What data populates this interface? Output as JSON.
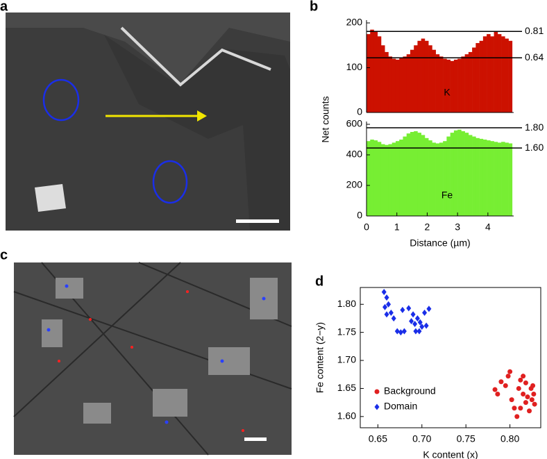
{
  "panel_labels": [
    "a",
    "b",
    "c",
    "d"
  ],
  "chart_data": [
    {
      "type": "histogram",
      "label": "K",
      "ylabel": "Net counts",
      "color": "#cc1100",
      "bins": [
        0,
        0.12,
        0.24,
        0.36,
        0.48,
        0.6,
        0.72,
        0.84,
        0.96,
        1.08,
        1.2,
        1.32,
        1.44,
        1.56,
        1.68,
        1.8,
        1.92,
        2.04,
        2.16,
        2.28,
        2.4,
        2.52,
        2.64,
        2.76,
        2.88,
        3,
        3.12,
        3.24,
        3.36,
        3.48,
        3.6,
        3.72,
        3.84,
        3.96,
        4.08,
        4.2,
        4.32,
        4.44,
        4.56,
        4.68,
        4.8
      ],
      "values": [
        175,
        185,
        180,
        170,
        150,
        135,
        125,
        120,
        118,
        122,
        125,
        130,
        140,
        150,
        160,
        165,
        160,
        150,
        140,
        130,
        125,
        120,
        118,
        115,
        118,
        120,
        125,
        130,
        135,
        145,
        155,
        160,
        170,
        175,
        170,
        180,
        175,
        170,
        165,
        160
      ],
      "xlim": [
        0,
        4.85
      ],
      "ylim": [
        0,
        200
      ],
      "yticks": [
        0,
        100,
        200
      ],
      "ref_lines": [
        {
          "y": 181,
          "label": "0.81"
        },
        {
          "y": 122,
          "label": "0.64"
        }
      ]
    },
    {
      "type": "histogram",
      "label": "Fe",
      "xlabel": "Distance (µm)",
      "color": "#77ee33",
      "bins": [
        0,
        0.12,
        0.24,
        0.36,
        0.48,
        0.6,
        0.72,
        0.84,
        0.96,
        1.08,
        1.2,
        1.32,
        1.44,
        1.56,
        1.68,
        1.8,
        1.92,
        2.04,
        2.16,
        2.28,
        2.4,
        2.52,
        2.64,
        2.76,
        2.88,
        3,
        3.12,
        3.24,
        3.36,
        3.48,
        3.6,
        3.72,
        3.84,
        3.96,
        4.08,
        4.2,
        4.32,
        4.44,
        4.56,
        4.68,
        4.8
      ],
      "values": [
        490,
        500,
        495,
        485,
        470,
        465,
        470,
        480,
        490,
        500,
        520,
        540,
        550,
        555,
        545,
        530,
        510,
        495,
        480,
        475,
        480,
        490,
        520,
        545,
        560,
        565,
        555,
        545,
        530,
        520,
        510,
        505,
        500,
        495,
        490,
        485,
        480,
        485,
        480,
        475
      ],
      "xlim": [
        0,
        4.85
      ],
      "xticks": [
        0,
        1,
        2,
        3,
        4
      ],
      "ylim": [
        0,
        600
      ],
      "yticks": [
        0,
        200,
        400,
        600
      ],
      "ref_lines": [
        {
          "y": 577,
          "label": "1.80"
        },
        {
          "y": 445,
          "label": "1.60"
        }
      ]
    },
    {
      "type": "scatter",
      "xlabel": "K content (x)",
      "ylabel": "Fe content (2−y)",
      "legend": "lower left",
      "xlim": [
        0.63,
        0.835
      ],
      "xticks": [
        0.65,
        {
          "value": 0.7,
          "label": "0.70"
        },
        0.75,
        {
          "value": 0.8,
          "label": "0.80"
        }
      ],
      "ylim": [
        1.58,
        1.83
      ],
      "yticks": [
        {
          "value": 1.6,
          "label": "1.60"
        },
        1.65,
        {
          "value": 1.7,
          "label": "1.70"
        },
        1.75,
        {
          "value": 1.8,
          "label": "1.80"
        }
      ],
      "series": [
        {
          "name": "Background",
          "color": "#e02020",
          "marker": "circle",
          "x": [
            0.783,
            0.786,
            0.79,
            0.795,
            0.798,
            0.8,
            0.802,
            0.805,
            0.808,
            0.81,
            0.812,
            0.815,
            0.815,
            0.818,
            0.82,
            0.822,
            0.824,
            0.825,
            0.827,
            0.828,
            0.826,
            0.812,
            0.818
          ],
          "values": [
            1.648,
            1.64,
            1.662,
            1.655,
            1.672,
            1.68,
            1.63,
            1.615,
            1.6,
            1.65,
            1.665,
            1.64,
            1.672,
            1.625,
            1.635,
            1.61,
            1.65,
            1.63,
            1.64,
            1.622,
            1.655,
            1.615,
            1.66
          ]
        },
        {
          "name": "Domain",
          "color": "#1a2ee8",
          "marker": "diamond",
          "x": [
            0.657,
            0.66,
            0.662,
            0.658,
            0.665,
            0.66,
            0.668,
            0.672,
            0.676,
            0.68,
            0.678,
            0.685,
            0.69,
            0.688,
            0.695,
            0.692,
            0.698,
            0.7,
            0.705,
            0.703,
            0.708,
            0.693,
            0.697
          ],
          "values": [
            1.822,
            1.812,
            1.8,
            1.795,
            1.785,
            1.782,
            1.775,
            1.752,
            1.75,
            1.752,
            1.79,
            1.793,
            1.782,
            1.77,
            1.775,
            1.765,
            1.768,
            1.76,
            1.762,
            1.785,
            1.792,
            1.752,
            1.752
          ]
        }
      ]
    }
  ]
}
